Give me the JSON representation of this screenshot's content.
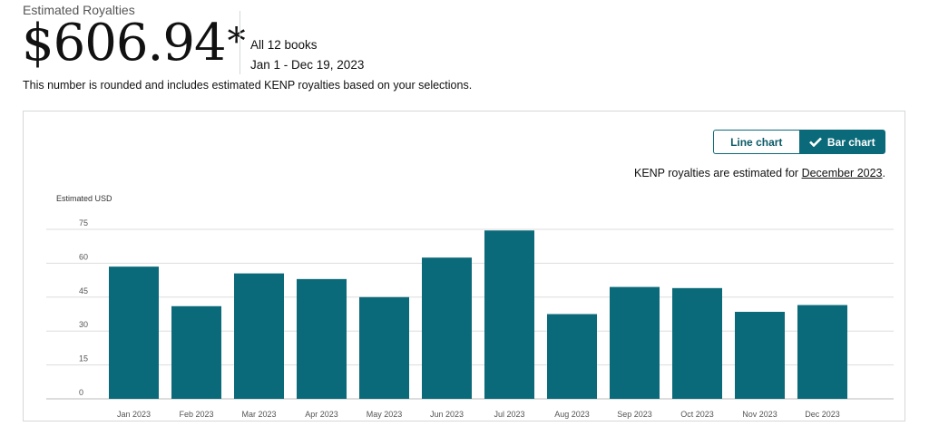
{
  "summary": {
    "label": "Estimated Royalties",
    "total": "$606.94",
    "asterisk": "*",
    "scope": "All 12 books",
    "date_range": "Jan 1 - Dec 19, 2023",
    "footnote": "This number is rounded and includes estimated KENP royalties based on your selections."
  },
  "controls": {
    "line_chart_label": "Line chart",
    "bar_chart_label": "Bar chart",
    "selected": "Bar chart"
  },
  "kenp_note": {
    "prefix": "KENP royalties are estimated for ",
    "link_text": "December 2023",
    "suffix": "."
  },
  "colors": {
    "bar": "#0b6a79",
    "accent": "#0b6a79"
  },
  "chart_data": {
    "type": "bar",
    "ylabel": "Estimated USD",
    "categories": [
      "Jan 2023",
      "Feb 2023",
      "Mar 2023",
      "Apr 2023",
      "May 2023",
      "Jun 2023",
      "Jul 2023",
      "Aug 2023",
      "Sep 2023",
      "Oct 2023",
      "Nov 2023",
      "Dec 2023"
    ],
    "values": [
      58.5,
      41,
      55.5,
      53,
      45,
      62.5,
      74.5,
      37.5,
      49.5,
      49,
      38.5,
      41.5
    ],
    "yticks": [
      0,
      15,
      30,
      45,
      60,
      75
    ],
    "ylim": [
      0,
      75
    ],
    "grid": true
  }
}
